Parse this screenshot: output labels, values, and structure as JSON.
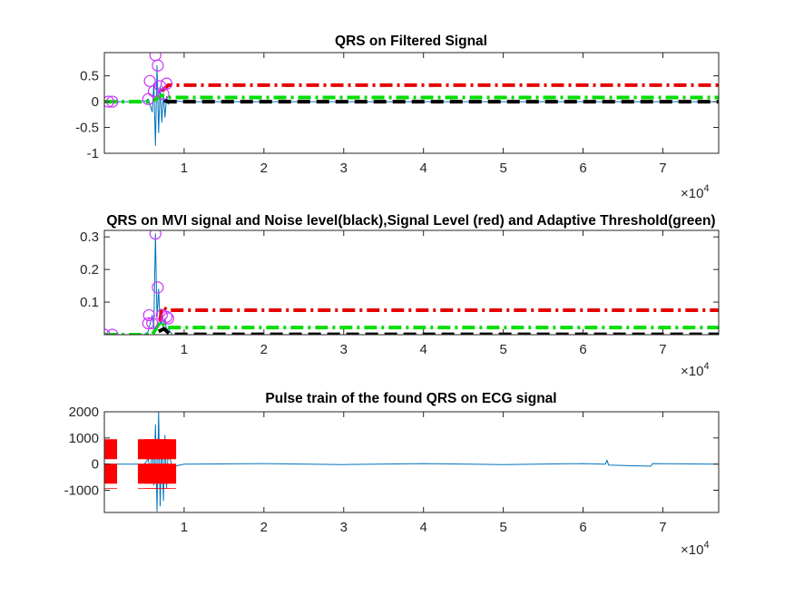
{
  "chart_data": [
    {
      "type": "line",
      "title": "QRS on Filtered Signal",
      "xlim": [
        0,
        7.7
      ],
      "ylim": [
        -1,
        0.95
      ],
      "xticks": [
        "1",
        "2",
        "3",
        "4",
        "5",
        "6",
        "7"
      ],
      "yticks": [
        "0.5",
        "0",
        "-0.5",
        "-1"
      ],
      "x_exponent": "×10",
      "x_exponent_power": "4",
      "series": [
        {
          "role": "signal",
          "color": "#0072bd",
          "style": "solid",
          "x": [
            0.0,
            0.05,
            0.1,
            0.2,
            0.3,
            0.4,
            0.5,
            0.55,
            0.6,
            0.62,
            0.64,
            0.66,
            0.68,
            0.7,
            0.72,
            0.74,
            0.76,
            0.78,
            0.8,
            0.85,
            1.0,
            2.0,
            3.0,
            4.0,
            5.0,
            6.0,
            7.0,
            7.7
          ],
          "y": [
            0.0,
            0.01,
            -0.01,
            0.0,
            0.0,
            0.01,
            0.0,
            0.05,
            -0.2,
            0.35,
            -0.85,
            0.7,
            -0.6,
            0.3,
            -0.4,
            0.15,
            -0.3,
            0.1,
            -0.05,
            0.02,
            0.0,
            0.0,
            0.0,
            0.0,
            0.0,
            0.0,
            0.0,
            0.0
          ]
        },
        {
          "role": "noise-level",
          "color": "#000000",
          "style": "dash",
          "x": [
            0.75,
            0.8,
            7.7
          ],
          "y": [
            0.02,
            0.0,
            0.0
          ]
        },
        {
          "role": "signal-level",
          "color": "#e60000",
          "style": "dashdot",
          "x": [
            0.72,
            0.8,
            7.7
          ],
          "y": [
            0.2,
            0.32,
            0.32
          ]
        },
        {
          "role": "adaptive-threshold",
          "color": "#00dd00",
          "style": "dashdot",
          "x": [
            0.0,
            0.6,
            0.72,
            0.8,
            7.7
          ],
          "y": [
            0.0,
            0.0,
            0.12,
            0.08,
            0.08
          ]
        }
      ],
      "markers": {
        "color": "#cc33ff",
        "x": [
          0.05,
          0.1,
          0.55,
          0.57,
          0.62,
          0.64,
          0.67,
          0.7,
          0.74,
          0.78
        ],
        "y": [
          0.0,
          0.0,
          0.05,
          0.4,
          0.2,
          0.9,
          0.7,
          0.3,
          0.15,
          0.35
        ]
      }
    },
    {
      "type": "line",
      "title": "QRS on MVI signal and Noise level(black),Signal Level (red) and Adaptive Threshold(green)",
      "xlim": [
        0,
        7.7
      ],
      "ylim": [
        0,
        0.32
      ],
      "xticks": [
        "1",
        "2",
        "3",
        "4",
        "5",
        "6",
        "7"
      ],
      "yticks": [
        "0.3",
        "0.2",
        "0.1"
      ],
      "x_exponent": "×10",
      "x_exponent_power": "4",
      "series": [
        {
          "role": "signal",
          "color": "#0072bd",
          "style": "solid",
          "x": [
            0.0,
            0.5,
            0.55,
            0.6,
            0.62,
            0.64,
            0.66,
            0.68,
            0.7,
            0.72,
            0.74,
            0.76,
            0.78,
            0.8,
            0.85,
            1.0,
            7.7
          ],
          "y": [
            0.0,
            0.0,
            0.01,
            0.06,
            0.02,
            0.31,
            0.05,
            0.14,
            0.03,
            0.04,
            0.02,
            0.05,
            0.01,
            0.02,
            0.0,
            0.0,
            0.0
          ]
        },
        {
          "role": "noise-level",
          "color": "#000000",
          "style": "dash",
          "x": [
            0.68,
            0.75,
            0.82,
            7.7
          ],
          "y": [
            0.01,
            0.018,
            0.001,
            0.001
          ]
        },
        {
          "role": "signal-level",
          "color": "#e60000",
          "style": "dashdot",
          "x": [
            0.7,
            0.72,
            0.8,
            7.7
          ],
          "y": [
            0.04,
            0.085,
            0.075,
            0.075
          ]
        },
        {
          "role": "adaptive-threshold",
          "color": "#00dd00",
          "style": "dashdot",
          "x": [
            0.0,
            0.6,
            0.7,
            0.78,
            7.7
          ],
          "y": [
            0.0,
            0.0,
            0.04,
            0.022,
            0.022
          ]
        }
      ],
      "markers": {
        "color": "#cc33ff",
        "x": [
          0.0,
          0.1,
          0.55,
          0.56,
          0.6,
          0.64,
          0.67,
          0.72,
          0.78,
          0.8
        ],
        "y": [
          0.0,
          0.0,
          0.035,
          0.06,
          0.035,
          0.31,
          0.145,
          0.06,
          0.055,
          0.05
        ]
      }
    },
    {
      "type": "line",
      "title": "Pulse train of the found QRS on ECG signal",
      "xlim": [
        0,
        7.7
      ],
      "ylim": [
        -1850,
        2000
      ],
      "xticks": [
        "1",
        "2",
        "3",
        "4",
        "5",
        "6",
        "7"
      ],
      "yticks": [
        "2000",
        "1000",
        "0",
        "-1000"
      ],
      "x_exponent": "×10",
      "x_exponent_power": "4",
      "series": [
        {
          "role": "ecg",
          "color": "#0072bd",
          "style": "solid",
          "x": [
            0.0,
            0.5,
            0.55,
            0.58,
            0.6,
            0.62,
            0.64,
            0.66,
            0.68,
            0.7,
            0.72,
            0.74,
            0.76,
            0.78,
            0.8,
            0.85,
            1.0,
            2.0,
            3.0,
            4.0,
            5.0,
            6.0,
            6.28,
            6.3,
            6.32,
            6.85,
            6.87,
            7.7
          ],
          "y": [
            0.0,
            0.0,
            200,
            -400,
            900,
            -800,
            1500,
            -1800,
            2000,
            -1600,
            900,
            -1400,
            1100,
            -900,
            500,
            -100,
            0,
            20,
            -20,
            20,
            -20,
            20,
            0,
            150,
            -40,
            -80,
            20,
            0
          ]
        },
        {
          "role": "pulse-train",
          "color": "#ff0000",
          "style": "dashed-thick",
          "x": [
            0.08,
            0.5,
            0.58,
            0.66,
            0.74,
            0.82
          ],
          "y_top": [
            950,
            950,
            950,
            950,
            950,
            950
          ],
          "y_bottom": [
            -950,
            -950,
            -950,
            -950,
            -950,
            -950
          ]
        }
      ]
    }
  ]
}
